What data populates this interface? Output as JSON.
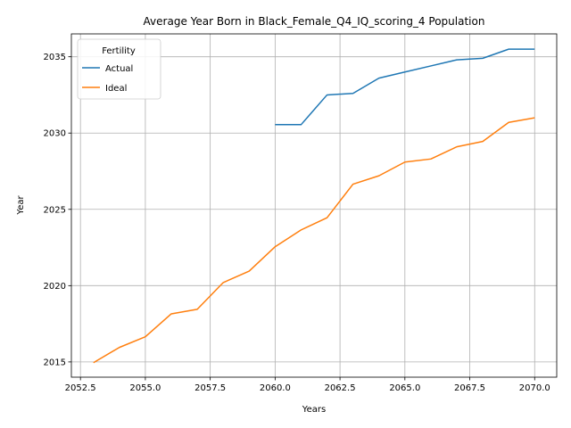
{
  "chart_data": {
    "type": "line",
    "title": "Average Year Born in Black_Female_Q4_IQ_scoring_4 Population",
    "xlabel": "Years",
    "ylabel": "Year",
    "xlim": [
      2052.15,
      2070.85
    ],
    "ylim": [
      2014.0,
      2036.5
    ],
    "x_ticks": [
      2052.5,
      2055.0,
      2057.5,
      2060.0,
      2062.5,
      2065.0,
      2067.5,
      2070.0
    ],
    "x_tick_labels": [
      "2052.5",
      "2055.0",
      "2057.5",
      "2060.0",
      "2062.5",
      "2065.0",
      "2067.5",
      "2070.0"
    ],
    "y_ticks": [
      2015,
      2020,
      2025,
      2030,
      2035
    ],
    "y_tick_labels": [
      "2015",
      "2020",
      "2025",
      "2030",
      "2035"
    ],
    "grid": true,
    "legend": {
      "title": "Fertility",
      "placement": "top-left"
    },
    "series": [
      {
        "name": "Actual",
        "color": "#1f77b4",
        "x": [
          2060,
          2061,
          2062,
          2063,
          2064,
          2065,
          2066,
          2067,
          2068,
          2069,
          2070
        ],
        "y": [
          2030.55,
          2030.55,
          2032.5,
          2032.6,
          2033.6,
          2034.0,
          2034.4,
          2034.8,
          2034.9,
          2035.5,
          2035.5
        ]
      },
      {
        "name": "Ideal",
        "color": "#ff7f0e",
        "x": [
          2053,
          2054,
          2055,
          2056,
          2057,
          2058,
          2059,
          2060,
          2061,
          2062,
          2063,
          2064,
          2065,
          2066,
          2067,
          2068,
          2069,
          2070
        ],
        "y": [
          2014.95,
          2015.95,
          2016.65,
          2018.15,
          2018.45,
          2020.2,
          2020.95,
          2022.55,
          2023.65,
          2024.45,
          2026.65,
          2027.2,
          2028.1,
          2028.3,
          2029.1,
          2029.45,
          2030.7,
          2031.0
        ]
      }
    ]
  }
}
